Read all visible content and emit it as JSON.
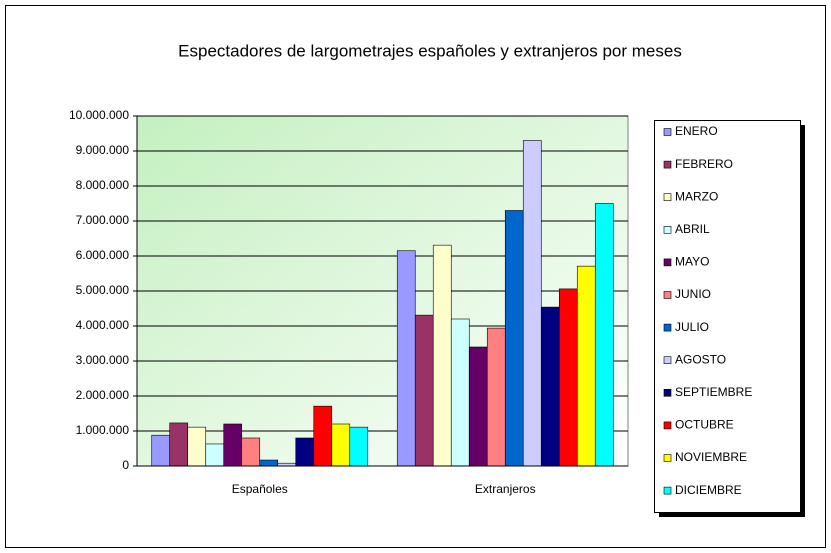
{
  "chart_data": {
    "type": "bar",
    "title": "Espectadores de largometrajes españoles y extranjeros por meses",
    "categories": [
      "Españoles",
      "Extranjeros"
    ],
    "series": [
      {
        "name": "ENERO",
        "color": "#9999ff",
        "values": [
          880000,
          6150000
        ]
      },
      {
        "name": "FEBRERO",
        "color": "#993366",
        "values": [
          1230000,
          4310000
        ]
      },
      {
        "name": "MARZO",
        "color": "#ffffcc",
        "values": [
          1110000,
          6310000
        ]
      },
      {
        "name": "ABRIL",
        "color": "#ccffff",
        "values": [
          630000,
          4200000
        ]
      },
      {
        "name": "MAYO",
        "color": "#660066",
        "values": [
          1200000,
          3400000
        ]
      },
      {
        "name": "JUNIO",
        "color": "#ff8080",
        "values": [
          800000,
          3940000
        ]
      },
      {
        "name": "JULIO",
        "color": "#0066cc",
        "values": [
          170000,
          7300000
        ]
      },
      {
        "name": "AGOSTO",
        "color": "#ccccff",
        "values": [
          80000,
          9300000
        ]
      },
      {
        "name": "SEPTIEMBRE",
        "color": "#000080",
        "values": [
          800000,
          4540000
        ]
      },
      {
        "name": "OCTUBRE",
        "color": "#ff0000",
        "values": [
          1710000,
          5060000
        ]
      },
      {
        "name": "NOVIEMBRE",
        "color": "#ffff00",
        "values": [
          1200000,
          5710000
        ]
      },
      {
        "name": "DICIEMBRE",
        "color": "#00ffff",
        "values": [
          1110000,
          7500000
        ]
      }
    ],
    "ylim": [
      0,
      10000000
    ],
    "yticks": [
      0,
      {
        "value": 1000000,
        "label": "1.000.000"
      },
      {
        "value": 2000000,
        "label": "2.000.000"
      },
      {
        "value": 3000000,
        "label": "3.000.000"
      },
      {
        "value": 4000000,
        "label": "4.000.000"
      },
      {
        "value": 5000000,
        "label": "5.000.000"
      },
      {
        "value": 6000000,
        "label": "6.000.000"
      },
      {
        "value": 7000000,
        "label": "7.000.000"
      },
      {
        "value": 8000000,
        "label": "8.000.000"
      },
      {
        "value": 9000000,
        "label": "9.000.000"
      },
      {
        "value": 10000000,
        "label": "10.000.000"
      }
    ],
    "grid": true,
    "legend": "right"
  }
}
